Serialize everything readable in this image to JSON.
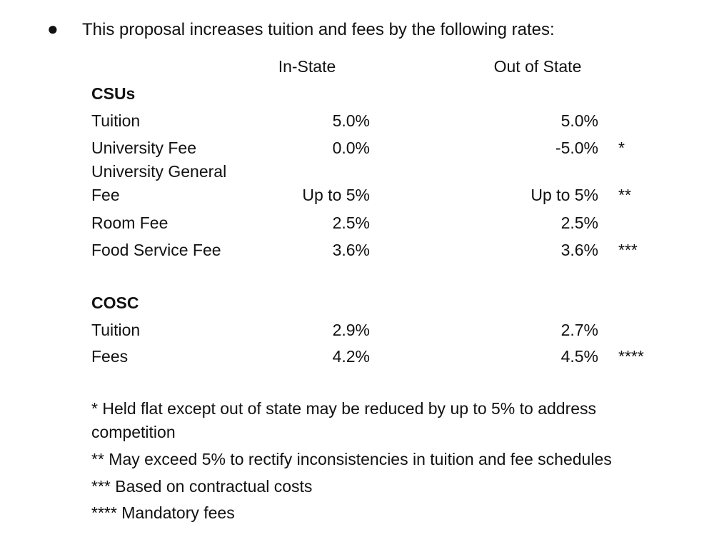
{
  "bullet": "This proposal increases tuition and fees by the following rates:",
  "columns": [
    "In-State",
    "Out of State"
  ],
  "sections": [
    {
      "title": "CSUs",
      "rows": [
        {
          "label": "Tuition",
          "in_state": "5.0%",
          "out_of_state": "5.0%"
        },
        {
          "label": "University Fee",
          "in_state": "0.0%",
          "out_of_state": "-5.0%",
          "note": "*"
        },
        {
          "label": "University General Fee",
          "in_state": "Up to 5%",
          "out_of_state": "Up to 5%",
          "note": "**"
        },
        {
          "label": "Room Fee",
          "in_state": "2.5%",
          "out_of_state": "2.5%"
        },
        {
          "label": "Food Service Fee",
          "in_state": "3.6%",
          "out_of_state": "3.6%",
          "note": "***"
        }
      ]
    },
    {
      "title": "COSC",
      "rows": [
        {
          "label": "Tuition",
          "in_state": "2.9%",
          "out_of_state": "2.7%"
        },
        {
          "label": "Fees",
          "in_state": "4.2%",
          "out_of_state": "4.5%",
          "note": "****"
        }
      ]
    }
  ],
  "footnotes": [
    "* Held flat except out of state may be reduced by up to 5% to address competition",
    "** May exceed 5% to rectify inconsistencies in tuition and fee schedules",
    "*** Based on contractual costs",
    "**** Mandatory fees"
  ]
}
